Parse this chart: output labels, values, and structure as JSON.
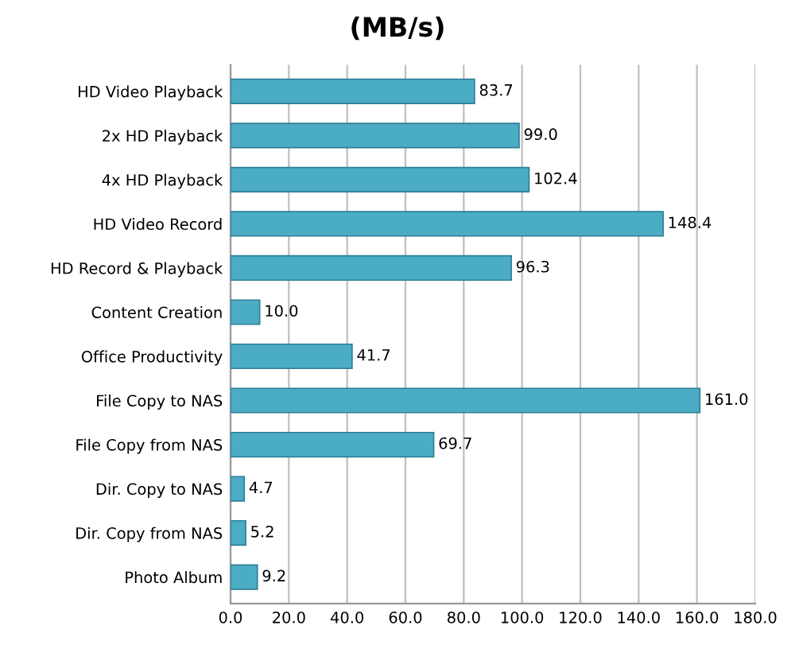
{
  "chart_data": {
    "type": "bar",
    "orientation": "horizontal",
    "title": "(MB/s)",
    "categories": [
      "HD Video Playback",
      "2x HD Playback",
      "4x HD Playback",
      "HD Video Record",
      "HD Record & Playback",
      "Content Creation",
      "Office Productivity",
      "File Copy to NAS",
      "File Copy from NAS",
      "Dir. Copy to NAS",
      "Dir. Copy from NAS",
      "Photo Album"
    ],
    "values": [
      83.7,
      99.0,
      102.4,
      148.4,
      96.3,
      10.0,
      41.7,
      161.0,
      69.7,
      4.7,
      5.2,
      9.2
    ],
    "value_labels": [
      "83.7",
      "99.0",
      "102.4",
      "148.4",
      "96.3",
      "10.0",
      "41.7",
      "161.0",
      "69.7",
      "4.7",
      "5.2",
      "9.2"
    ],
    "color": "#4bacc6",
    "xlim": [
      0,
      180
    ],
    "xticks": [
      {
        "value": 0,
        "label": "0.0"
      },
      {
        "value": 20,
        "label": "20.0"
      },
      {
        "value": 40,
        "label": "40.0"
      },
      {
        "value": 60,
        "label": "60.0"
      },
      {
        "value": 80,
        "label": "80.0"
      },
      {
        "value": 100,
        "label": "100.0"
      },
      {
        "value": 120,
        "label": "120.0"
      },
      {
        "value": 140,
        "label": "140.0"
      },
      {
        "value": 160,
        "label": "160.0"
      },
      {
        "value": 180,
        "label": "180.0"
      }
    ],
    "grid": "x",
    "legend": false
  }
}
